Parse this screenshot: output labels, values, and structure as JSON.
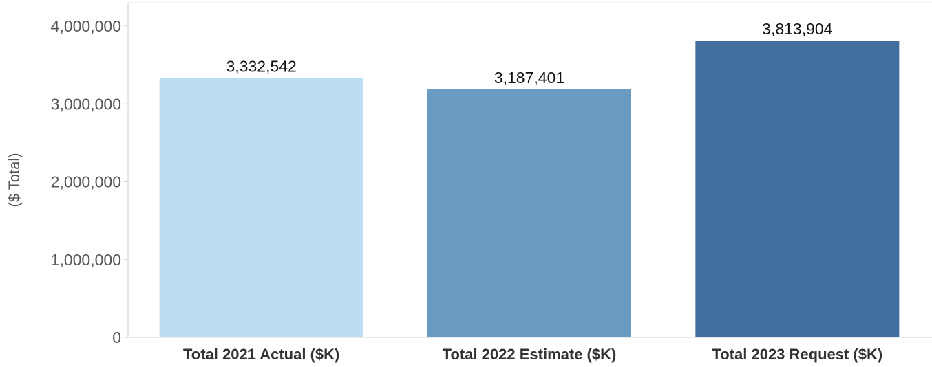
{
  "chart_data": {
    "type": "bar",
    "title": "",
    "xlabel": "",
    "ylabel": "($ Total)",
    "ylim": [
      0,
      4000000
    ],
    "yticks": [
      0,
      1000000,
      2000000,
      3000000,
      4000000
    ],
    "ytick_labels": [
      "0",
      "1,000,000",
      "2,000,000",
      "3,000,000",
      "4,000,000"
    ],
    "grid": false,
    "legend": "none",
    "categories": [
      "Total 2021 Actual ($K)",
      "Total 2022 Estimate ($K)",
      "Total 2023 Request ($K)"
    ],
    "values": [
      3332542,
      3187401,
      3813904
    ],
    "value_labels": [
      "3,332,542",
      "3,187,401",
      "3,813,904"
    ],
    "colors": [
      "#BBDEF0",
      "#6A9BC3",
      "#416E9E"
    ]
  },
  "theme": {
    "axis_line_color": "#D0D0D0",
    "tick_text_color": "#555555"
  }
}
